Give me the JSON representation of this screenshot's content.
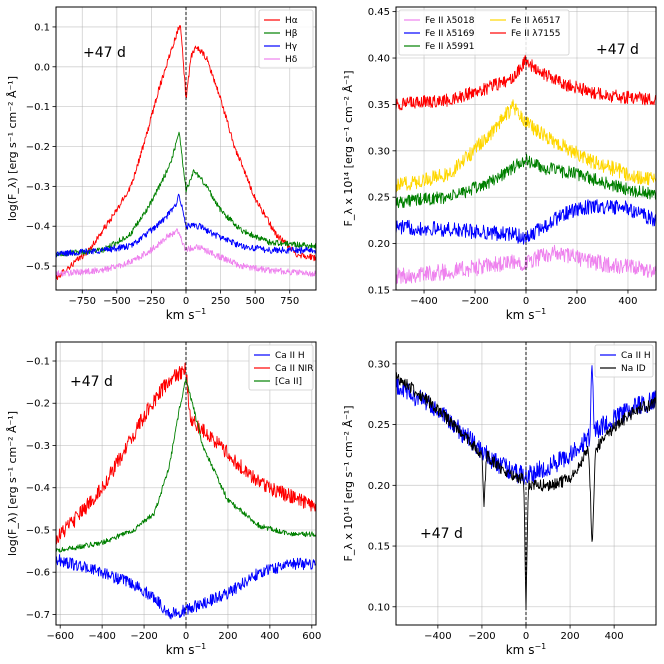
{
  "chart_data": [
    {
      "type": "line",
      "panel": "top-left",
      "annotation": "+47 d",
      "xlabel_main": "km s",
      "xlabel_sup": "−1",
      "ylabel": "log(F_λ) [erg s⁻¹ cm⁻² Å⁻¹]",
      "xlim": [
        -940,
        940
      ],
      "ylim": [
        -0.56,
        0.15
      ],
      "xticks": [
        -750,
        -500,
        -250,
        0,
        250,
        500,
        750
      ],
      "xtick_labels": [
        "−750",
        "−500",
        "−250",
        "0",
        "250",
        "500",
        "750"
      ],
      "yticks": [
        -0.5,
        -0.4,
        -0.3,
        -0.2,
        -0.1,
        0.0,
        0.1
      ],
      "ytick_labels": [
        "−0.5",
        "−0.4",
        "−0.3",
        "−0.2",
        "−0.1",
        "0.0",
        "0.1"
      ],
      "grid": true,
      "legend_position": "top-right",
      "series": [
        {
          "name": "Hα",
          "color": "#ff0000",
          "noise": 0.008,
          "points": [
            [
              -940,
              -0.53
            ],
            [
              -700,
              -0.46
            ],
            [
              -500,
              -0.36
            ],
            [
              -400,
              -0.3
            ],
            [
              -300,
              -0.19
            ],
            [
              -200,
              -0.06
            ],
            [
              -100,
              0.05
            ],
            [
              -40,
              0.11
            ],
            [
              0,
              -0.08
            ],
            [
              40,
              0.03
            ],
            [
              80,
              0.05
            ],
            [
              150,
              0.02
            ],
            [
              250,
              -0.08
            ],
            [
              350,
              -0.2
            ],
            [
              500,
              -0.33
            ],
            [
              650,
              -0.42
            ],
            [
              800,
              -0.47
            ],
            [
              940,
              -0.48
            ]
          ]
        },
        {
          "name": "Hβ",
          "color": "#008000",
          "noise": 0.007,
          "points": [
            [
              -940,
              -0.47
            ],
            [
              -600,
              -0.46
            ],
            [
              -400,
              -0.42
            ],
            [
              -250,
              -0.34
            ],
            [
              -150,
              -0.27
            ],
            [
              -100,
              -0.23
            ],
            [
              -50,
              -0.16
            ],
            [
              0,
              -0.31
            ],
            [
              60,
              -0.26
            ],
            [
              150,
              -0.3
            ],
            [
              250,
              -0.36
            ],
            [
              400,
              -0.41
            ],
            [
              600,
              -0.44
            ],
            [
              940,
              -0.45
            ]
          ]
        },
        {
          "name": "Hγ",
          "color": "#0000ff",
          "noise": 0.008,
          "points": [
            [
              -940,
              -0.47
            ],
            [
              -600,
              -0.46
            ],
            [
              -400,
              -0.45
            ],
            [
              -250,
              -0.41
            ],
            [
              -150,
              -0.38
            ],
            [
              -80,
              -0.35
            ],
            [
              -50,
              -0.32
            ],
            [
              0,
              -0.4
            ],
            [
              100,
              -0.4
            ],
            [
              200,
              -0.42
            ],
            [
              400,
              -0.45
            ],
            [
              600,
              -0.46
            ],
            [
              940,
              -0.46
            ]
          ]
        },
        {
          "name": "Hδ",
          "color": "#ee82ee",
          "noise": 0.008,
          "points": [
            [
              -940,
              -0.52
            ],
            [
              -600,
              -0.51
            ],
            [
              -400,
              -0.49
            ],
            [
              -250,
              -0.46
            ],
            [
              -150,
              -0.43
            ],
            [
              -60,
              -0.41
            ],
            [
              0,
              -0.46
            ],
            [
              80,
              -0.45
            ],
            [
              200,
              -0.47
            ],
            [
              400,
              -0.5
            ],
            [
              600,
              -0.51
            ],
            [
              940,
              -0.52
            ]
          ]
        }
      ]
    },
    {
      "type": "line",
      "panel": "top-right",
      "annotation": "+47 d",
      "xlabel_main": "km s",
      "xlabel_sup": "−1",
      "ylabel": "F_λ x 10¹⁴ [erg s⁻¹ cm⁻² Å⁻¹]",
      "xlim": [
        -510,
        510
      ],
      "ylim": [
        0.15,
        0.455
      ],
      "xticks": [
        -400,
        -200,
        0,
        200,
        400
      ],
      "xtick_labels": [
        "−400",
        "−200",
        "0",
        "200",
        "400"
      ],
      "yticks": [
        0.15,
        0.2,
        0.25,
        0.3,
        0.35,
        0.4,
        0.45
      ],
      "ytick_labels": [
        "0.15",
        "0.20",
        "0.25",
        "0.30",
        "0.35",
        "0.40",
        "0.45"
      ],
      "grid": true,
      "legend_position": "top-left",
      "series": [
        {
          "name": "Fe II λ5018",
          "color": "#ee82ee",
          "noise": 0.009,
          "points": [
            [
              -510,
              0.165
            ],
            [
              -300,
              0.17
            ],
            [
              -100,
              0.178
            ],
            [
              0,
              0.18
            ],
            [
              100,
              0.19
            ],
            [
              200,
              0.185
            ],
            [
              300,
              0.178
            ],
            [
              510,
              0.17
            ]
          ]
        },
        {
          "name": "Fe II λ5169",
          "color": "#0000ff",
          "noise": 0.008,
          "points": [
            [
              -510,
              0.218
            ],
            [
              -300,
              0.215
            ],
            [
              -150,
              0.212
            ],
            [
              -50,
              0.21
            ],
            [
              0,
              0.205
            ],
            [
              50,
              0.215
            ],
            [
              150,
              0.232
            ],
            [
              250,
              0.24
            ],
            [
              400,
              0.238
            ],
            [
              510,
              0.225
            ]
          ]
        },
        {
          "name": "Fe II λ5991",
          "color": "#008000",
          "noise": 0.007,
          "points": [
            [
              -510,
              0.245
            ],
            [
              -300,
              0.25
            ],
            [
              -150,
              0.265
            ],
            [
              -50,
              0.282
            ],
            [
              0,
              0.29
            ],
            [
              60,
              0.282
            ],
            [
              200,
              0.275
            ],
            [
              350,
              0.262
            ],
            [
              510,
              0.252
            ]
          ]
        },
        {
          "name": "Fe II λ6517",
          "color": "#ffd700",
          "noise": 0.008,
          "points": [
            [
              -510,
              0.262
            ],
            [
              -300,
              0.275
            ],
            [
              -150,
              0.315
            ],
            [
              -50,
              0.348
            ],
            [
              0,
              0.33
            ],
            [
              100,
              0.312
            ],
            [
              250,
              0.29
            ],
            [
              400,
              0.275
            ],
            [
              510,
              0.268
            ]
          ]
        },
        {
          "name": "Fe II λ7155",
          "color": "#ff0000",
          "noise": 0.007,
          "points": [
            [
              -510,
              0.35
            ],
            [
              -300,
              0.355
            ],
            [
              -150,
              0.368
            ],
            [
              -50,
              0.378
            ],
            [
              0,
              0.398
            ],
            [
              50,
              0.385
            ],
            [
              150,
              0.372
            ],
            [
              300,
              0.36
            ],
            [
              510,
              0.355
            ]
          ]
        }
      ]
    },
    {
      "type": "line",
      "panel": "bottom-left",
      "annotation": "+47 d",
      "xlabel_main": "km s",
      "xlabel_sup": "−1",
      "ylabel": "log(F_λ) [erg s⁻¹ cm⁻² Å⁻¹]",
      "xlim": [
        -620,
        620
      ],
      "ylim": [
        -0.725,
        -0.055
      ],
      "xticks": [
        -600,
        -400,
        -200,
        0,
        200,
        400,
        600
      ],
      "xtick_labels": [
        "−600",
        "−400",
        "−200",
        "0",
        "200",
        "400",
        "600"
      ],
      "yticks": [
        -0.7,
        -0.6,
        -0.5,
        -0.4,
        -0.3,
        -0.2,
        -0.1
      ],
      "ytick_labels": [
        "−0.7",
        "−0.6",
        "−0.5",
        "−0.4",
        "−0.3",
        "−0.2",
        "−0.1"
      ],
      "grid": true,
      "legend_position": "top-right",
      "series": [
        {
          "name": "Ca II H",
          "color": "#0000ff",
          "noise": 0.014,
          "points": [
            [
              -620,
              -0.57
            ],
            [
              -400,
              -0.6
            ],
            [
              -250,
              -0.63
            ],
            [
              -150,
              -0.66
            ],
            [
              -80,
              -0.7
            ],
            [
              0,
              -0.69
            ],
            [
              100,
              -0.67
            ],
            [
              200,
              -0.65
            ],
            [
              350,
              -0.6
            ],
            [
              500,
              -0.58
            ],
            [
              620,
              -0.58
            ]
          ]
        },
        {
          "name": "Ca II NIR",
          "color": "#ff0000",
          "noise": 0.018,
          "points": [
            [
              -620,
              -0.52
            ],
            [
              -500,
              -0.46
            ],
            [
              -400,
              -0.4
            ],
            [
              -300,
              -0.32
            ],
            [
              -200,
              -0.23
            ],
            [
              -120,
              -0.17
            ],
            [
              -60,
              -0.14
            ],
            [
              0,
              -0.12
            ],
            [
              20,
              -0.24
            ],
            [
              100,
              -0.27
            ],
            [
              200,
              -0.32
            ],
            [
              300,
              -0.37
            ],
            [
              400,
              -0.4
            ],
            [
              500,
              -0.42
            ],
            [
              620,
              -0.45
            ]
          ]
        },
        {
          "name": "[Ca II]",
          "color": "#008000",
          "noise": 0.006,
          "points": [
            [
              -620,
              -0.55
            ],
            [
              -400,
              -0.53
            ],
            [
              -250,
              -0.5
            ],
            [
              -150,
              -0.46
            ],
            [
              -80,
              -0.35
            ],
            [
              -30,
              -0.21
            ],
            [
              0,
              -0.14
            ],
            [
              30,
              -0.2
            ],
            [
              80,
              -0.3
            ],
            [
              200,
              -0.43
            ],
            [
              350,
              -0.49
            ],
            [
              500,
              -0.51
            ],
            [
              620,
              -0.51
            ]
          ]
        }
      ]
    },
    {
      "type": "line",
      "panel": "bottom-right",
      "annotation": "+47 d",
      "xlabel_main": "km s",
      "xlabel_sup": "−1",
      "ylabel": "F_λ x 10¹⁴ [erg s⁻¹ cm⁻² Å⁻¹]",
      "xlim": [
        -590,
        590
      ],
      "ylim": [
        0.085,
        0.318
      ],
      "xticks": [
        -400,
        -200,
        0,
        200,
        400
      ],
      "xtick_labels": [
        "−400",
        "−200",
        "0",
        "200",
        "400"
      ],
      "yticks": [
        0.1,
        0.15,
        0.2,
        0.25,
        0.3
      ],
      "ytick_labels": [
        "0.10",
        "0.15",
        "0.20",
        "0.25",
        "0.30"
      ],
      "grid": true,
      "legend_position": "top-right",
      "series": [
        {
          "name": "Ca II H",
          "color": "#0000ff",
          "noise": 0.008,
          "points": [
            [
              -590,
              0.282
            ],
            [
              -450,
              0.268
            ],
            [
              -300,
              0.245
            ],
            [
              -150,
              0.22
            ],
            [
              -50,
              0.21
            ],
            [
              0,
              0.208
            ],
            [
              100,
              0.215
            ],
            [
              200,
              0.225
            ],
            [
              290,
              0.24
            ],
            [
              300,
              0.305
            ],
            [
              310,
              0.245
            ],
            [
              400,
              0.255
            ],
            [
              500,
              0.265
            ],
            [
              590,
              0.27
            ]
          ]
        },
        {
          "name": "Na ID",
          "color": "#000000",
          "noise": 0.005,
          "points": [
            [
              -590,
              0.29
            ],
            [
              -450,
              0.27
            ],
            [
              -300,
              0.245
            ],
            [
              -200,
              0.225
            ],
            [
              -190,
              0.18
            ],
            [
              -180,
              0.225
            ],
            [
              -100,
              0.212
            ],
            [
              -10,
              0.205
            ],
            [
              0,
              0.1
            ],
            [
              10,
              0.2
            ],
            [
              100,
              0.2
            ],
            [
              200,
              0.205
            ],
            [
              285,
              0.23
            ],
            [
              300,
              0.15
            ],
            [
              315,
              0.23
            ],
            [
              400,
              0.248
            ],
            [
              500,
              0.262
            ],
            [
              590,
              0.268
            ]
          ]
        }
      ]
    }
  ]
}
